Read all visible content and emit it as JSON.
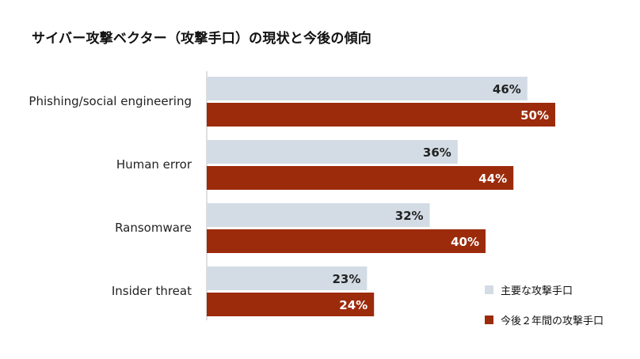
{
  "title": "サイバー攻撃ベクター（攻撃手口）の現状と今後の傾向",
  "chart_data": {
    "type": "bar",
    "orientation": "horizontal",
    "title": "サイバー攻撃ベクター（攻撃手口）の現状と今後の傾向",
    "categories": [
      "Phishing/social engineering",
      "Human error",
      "Ransomware",
      "Insider threat"
    ],
    "series": [
      {
        "name": "主要な攻撃手口",
        "values": [
          46,
          36,
          32,
          23
        ],
        "color": "#d3dce5",
        "label_color": "#222222"
      },
      {
        "name": "今後２年間の攻撃手口",
        "values": [
          50,
          44,
          40,
          24
        ],
        "color": "#9c2b0c",
        "label_color": "#ffffff"
      }
    ],
    "value_suffix": "%",
    "xlim": [
      0,
      100
    ],
    "grid": false,
    "legend_position": "bottom-right"
  }
}
